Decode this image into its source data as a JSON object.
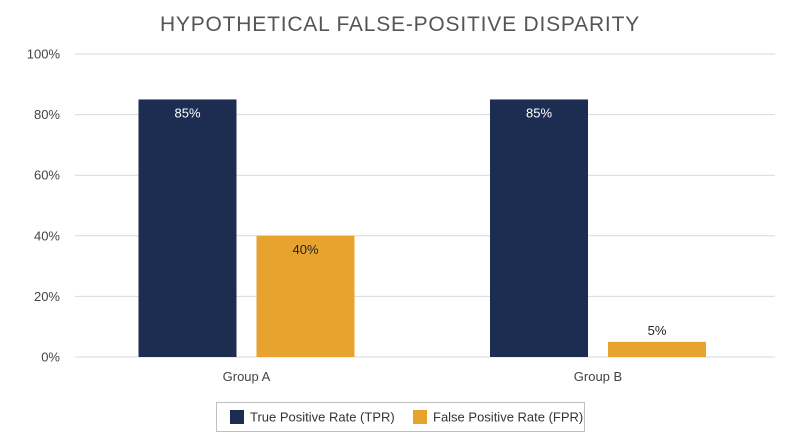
{
  "chart_data": {
    "type": "bar",
    "title": "HYPOTHETICAL FALSE-POSITIVE DISPARITY",
    "xlabel": "",
    "ylabel": "",
    "categories": [
      "Group A",
      "Group B"
    ],
    "series": [
      {
        "name": "True Positive Rate (TPR)",
        "color": "#1d2d52",
        "values": [
          85,
          85
        ],
        "labels": [
          "85%",
          "85%"
        ]
      },
      {
        "name": "False Positive Rate (FPR)",
        "color": "#e7a32e",
        "values": [
          40,
          5
        ],
        "labels": [
          "40%",
          "5%"
        ]
      }
    ],
    "ylim": [
      0,
      100
    ],
    "yticks": [
      0,
      20,
      40,
      60,
      80,
      100
    ],
    "ytick_labels": [
      "0%",
      "20%",
      "40%",
      "60%",
      "80%",
      "100%"
    ],
    "grid": true,
    "legend_position": "bottom-center"
  }
}
